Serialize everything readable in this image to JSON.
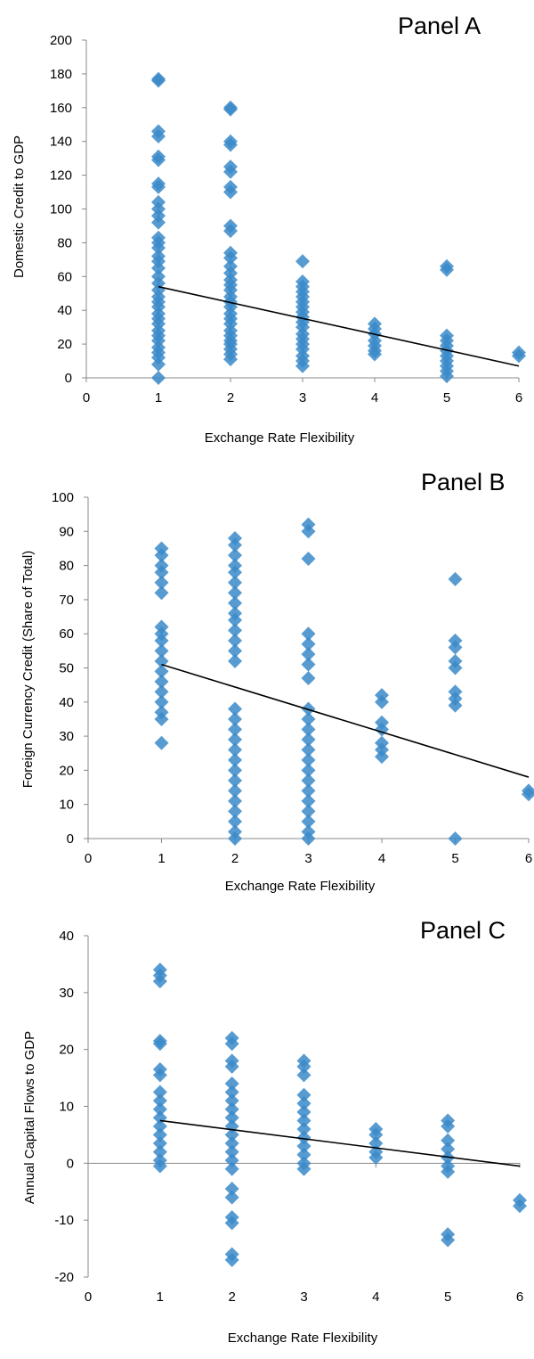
{
  "chart_data": [
    {
      "type": "scatter",
      "title": "Panel A",
      "xlabel": "Exchange Rate Flexibility",
      "ylabel": "Domestic Credit to GDP",
      "xlim": [
        0,
        6
      ],
      "ylim": [
        0,
        200
      ],
      "xticks": [
        "0",
        "1",
        "2",
        "3",
        "4",
        "5",
        "6"
      ],
      "yticks": [
        "0",
        "20",
        "40",
        "60",
        "80",
        "100",
        "120",
        "140",
        "160",
        "180",
        "200"
      ],
      "marker_color": "#3A89C9",
      "trendline": {
        "x": [
          1,
          6
        ],
        "y": [
          54,
          7
        ]
      },
      "series": [
        {
          "x": 1,
          "y": [
            177,
            176,
            146,
            143,
            131,
            129,
            115,
            113,
            104,
            100,
            96,
            92,
            83,
            80,
            77,
            72,
            69,
            65,
            60,
            56,
            52,
            48,
            45,
            42,
            38,
            35,
            32,
            28,
            25,
            22,
            18,
            15,
            12,
            8,
            0
          ]
        },
        {
          "x": 2,
          "y": [
            160,
            159,
            140,
            138,
            125,
            122,
            113,
            110,
            90,
            87,
            74,
            71,
            66,
            62,
            58,
            55,
            52,
            48,
            45,
            42,
            38,
            35,
            32,
            28,
            25,
            22,
            20,
            17,
            14,
            11
          ]
        },
        {
          "x": 3,
          "y": [
            69,
            57,
            54,
            51,
            48,
            45,
            42,
            39,
            36,
            33,
            30,
            26,
            23,
            20,
            17,
            13,
            10,
            7
          ]
        },
        {
          "x": 4,
          "y": [
            32,
            29,
            26,
            22,
            19,
            16,
            14
          ]
        },
        {
          "x": 5,
          "y": [
            66,
            64,
            25,
            22,
            19,
            16,
            13,
            10,
            7,
            4,
            1
          ]
        },
        {
          "x": 6,
          "y": [
            15,
            13
          ]
        }
      ]
    },
    {
      "type": "scatter",
      "title": "Panel B",
      "xlabel": "Exchange Rate Flexibility",
      "ylabel": "Foreign Currency Credit (Share of Total)",
      "xlim": [
        0,
        6
      ],
      "ylim": [
        0,
        100
      ],
      "xticks": [
        "0",
        "1",
        "2",
        "3",
        "4",
        "5",
        "6"
      ],
      "yticks": [
        "0",
        "10",
        "20",
        "30",
        "40",
        "50",
        "60",
        "70",
        "80",
        "90",
        "100"
      ],
      "marker_color": "#3A89C9",
      "trendline": {
        "x": [
          1,
          6
        ],
        "y": [
          51,
          18
        ]
      },
      "series": [
        {
          "x": 1,
          "y": [
            85,
            83,
            80,
            78,
            75,
            72,
            62,
            60,
            58,
            55,
            52,
            49,
            46,
            43,
            40,
            37,
            35,
            28
          ]
        },
        {
          "x": 2,
          "y": [
            88,
            86,
            83,
            80,
            78,
            75,
            72,
            69,
            66,
            64,
            61,
            58,
            55,
            52,
            38,
            35,
            32,
            29,
            26,
            23,
            20,
            17,
            14,
            11,
            8,
            5,
            2,
            0
          ]
        },
        {
          "x": 3,
          "y": [
            92,
            90,
            82,
            60,
            57,
            54,
            51,
            47,
            38,
            35,
            32,
            29,
            26,
            23,
            20,
            17,
            14,
            11,
            8,
            5,
            2,
            0
          ]
        },
        {
          "x": 4,
          "y": [
            42,
            40,
            34,
            32,
            28,
            26,
            24
          ]
        },
        {
          "x": 5,
          "y": [
            76,
            58,
            56,
            52,
            50,
            43,
            41,
            39,
            0
          ]
        },
        {
          "x": 6,
          "y": [
            14,
            13
          ]
        }
      ]
    },
    {
      "type": "scatter",
      "title": "Panel C",
      "xlabel": "Exchange Rate Flexibility",
      "ylabel": "Annual Capital Flows to GDP",
      "xlim": [
        0,
        6
      ],
      "ylim": [
        -20,
        40
      ],
      "xticks": [
        "0",
        "1",
        "2",
        "3",
        "4",
        "5",
        "6"
      ],
      "yticks": [
        "-20",
        "-10",
        "0",
        "10",
        "20",
        "30",
        "40"
      ],
      "marker_color": "#3A89C9",
      "trendline": {
        "x": [
          1,
          6
        ],
        "y": [
          7.5,
          -0.5
        ]
      },
      "series": [
        {
          "x": 1,
          "y": [
            34,
            33,
            32,
            21.5,
            21,
            16.5,
            15.5,
            12.5,
            11,
            9.5,
            8,
            6.5,
            5,
            3.5,
            2,
            0.5,
            -0.5
          ]
        },
        {
          "x": 2,
          "y": [
            22,
            21,
            18,
            17,
            14,
            12.5,
            11,
            9.5,
            8,
            6.5,
            5,
            3.5,
            2,
            0.5,
            -1,
            -4.5,
            -6,
            -9.5,
            -10.5,
            -16,
            -17
          ]
        },
        {
          "x": 3,
          "y": [
            18,
            17,
            15.5,
            12,
            10.5,
            9,
            7.5,
            6,
            4.5,
            3,
            1.5,
            0,
            -1
          ]
        },
        {
          "x": 4,
          "y": [
            6,
            5,
            3.5,
            2,
            1
          ]
        },
        {
          "x": 5,
          "y": [
            7.5,
            6.5,
            4,
            2.5,
            1,
            -0.5,
            -1.5,
            -12.5,
            -13.5
          ]
        },
        {
          "x": 6,
          "y": [
            -6.5,
            -7.5
          ]
        }
      ]
    }
  ]
}
